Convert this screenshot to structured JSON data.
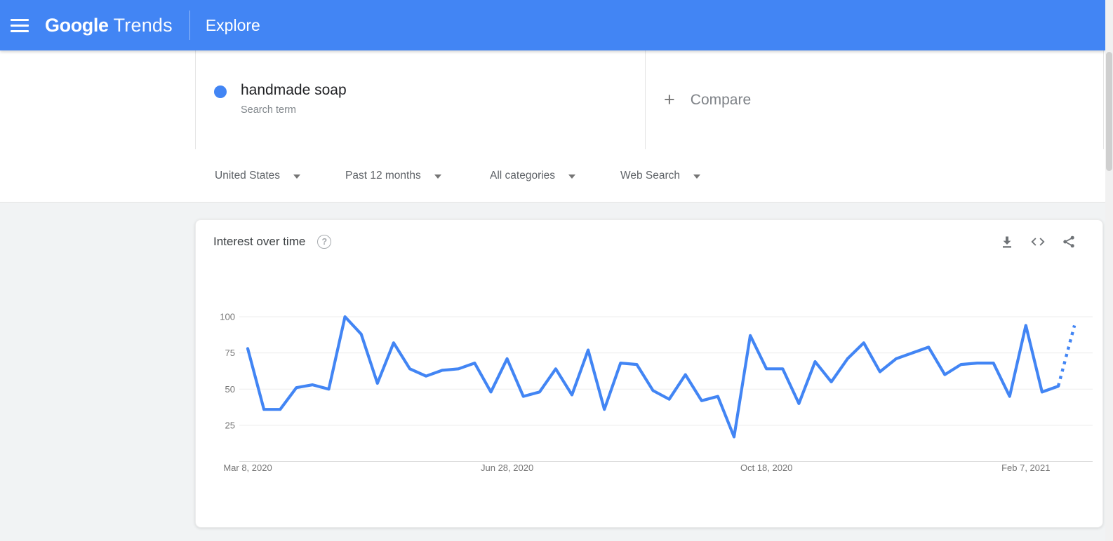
{
  "header": {
    "logo_primary": "Google",
    "logo_secondary": "Trends",
    "section_title": "Explore"
  },
  "search_card": {
    "term": "handmade soap",
    "term_type": "Search term",
    "plus_icon": "+",
    "compare_label": "Compare"
  },
  "filters": [
    {
      "label": "United States"
    },
    {
      "label": "Past 12 months"
    },
    {
      "label": "All categories"
    },
    {
      "label": "Web Search"
    }
  ],
  "chart_card": {
    "title": "Interest over time",
    "help_icon": "?",
    "actions": [
      "download-icon",
      "embed-icon",
      "share-icon"
    ]
  },
  "colors": {
    "header_bg": "#4285f4",
    "accent_blue": "#4285f4",
    "line_blue": "#4285f4",
    "grid": "#ececec",
    "axis_baseline": "#dcdcdc",
    "axis_text": "#757575"
  },
  "chart_data": {
    "type": "line",
    "title": "Interest over time",
    "x_unit": "week",
    "point_count": 52,
    "ylim": [
      0,
      100
    ],
    "y_ticks": [
      100,
      75,
      50,
      25
    ],
    "x_tick_indices": [
      0,
      16,
      32,
      48
    ],
    "x_tick_labels": [
      "Mar 8, 2020",
      "Jun 28, 2020",
      "Oct 18, 2020",
      "Feb 7, 2021"
    ],
    "grid": "horizontal",
    "legend": "none",
    "series": [
      {
        "name": "handmade soap",
        "color": "#4285f4",
        "last_segment_dotted": true,
        "values": [
          78,
          36,
          36,
          51,
          53,
          50,
          100,
          88,
          54,
          82,
          64,
          59,
          63,
          64,
          68,
          48,
          71,
          45,
          48,
          64,
          46,
          77,
          36,
          68,
          67,
          49,
          43,
          60,
          42,
          45,
          17,
          87,
          64,
          64,
          40,
          69,
          55,
          71,
          82,
          62,
          71,
          75,
          79,
          60,
          67,
          68,
          68,
          45,
          94,
          48,
          52,
          94
        ]
      }
    ]
  }
}
